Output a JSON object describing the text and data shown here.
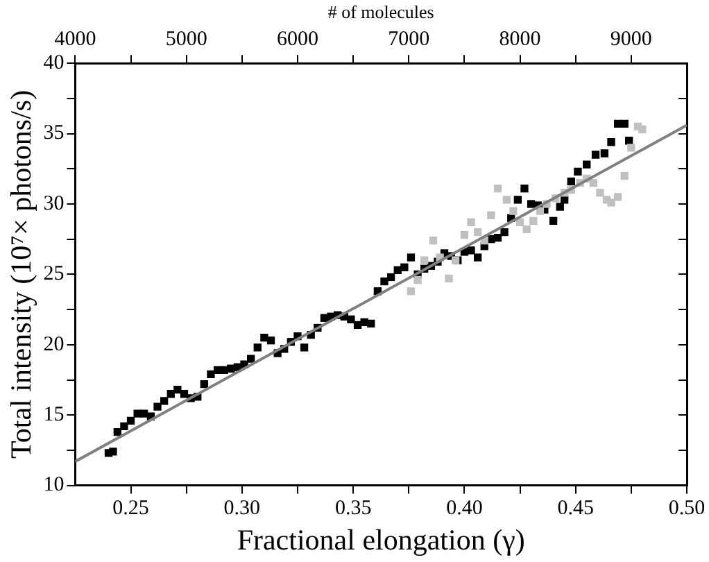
{
  "chart_data": {
    "type": "scatter",
    "xlabel": "Fractional elongation (γ)",
    "ylabel": "Total intensity (10⁷× photons/s)",
    "x2label": "# of molecules",
    "xlim": [
      0.225,
      0.5
    ],
    "xticks": [
      {
        "value": 0.25,
        "label": "0.25"
      },
      {
        "value": 0.275,
        "label": null
      },
      {
        "value": 0.3,
        "label": "0.30"
      },
      {
        "value": 0.325,
        "label": null
      },
      {
        "value": 0.35,
        "label": "0.35"
      },
      {
        "value": 0.375,
        "label": null
      },
      {
        "value": 0.4,
        "label": "0.40"
      },
      {
        "value": 0.425,
        "label": null
      },
      {
        "value": 0.45,
        "label": "0.45"
      },
      {
        "value": 0.475,
        "label": null
      },
      {
        "value": 0.5,
        "label": "0.50"
      }
    ],
    "x2lim": [
      4000,
      9500
    ],
    "x2ticks": [
      4000,
      {
        "value": 4500,
        "label": null
      },
      5000,
      {
        "value": 5500,
        "label": null
      },
      6000,
      {
        "value": 6500,
        "label": null
      },
      7000,
      {
        "value": 7500,
        "label": null
      },
      8000,
      {
        "value": 8500,
        "label": null
      },
      9000
    ],
    "ylim": [
      10,
      40
    ],
    "yticks": [
      10,
      {
        "value": 12.5,
        "label": null
      },
      15,
      {
        "value": 17.5,
        "label": null
      },
      20,
      {
        "value": 22.5,
        "label": null
      },
      25,
      {
        "value": 27.5,
        "label": null
      },
      30,
      {
        "value": 32.5,
        "label": null
      },
      35,
      {
        "value": 37.5,
        "label": null
      },
      40
    ],
    "grid": false,
    "legend": false,
    "marker": "square",
    "series": [
      {
        "color": "#000000",
        "x": [
          0.24,
          0.242,
          0.244,
          0.247,
          0.25,
          0.253,
          0.256,
          0.259,
          0.262,
          0.265,
          0.268,
          0.271,
          0.274,
          0.277,
          0.28,
          0.283,
          0.286,
          0.289,
          0.292,
          0.295,
          0.298,
          0.301,
          0.304,
          0.307,
          0.31,
          0.313,
          0.316,
          0.319,
          0.322,
          0.325,
          0.328,
          0.331,
          0.334,
          0.337,
          0.34,
          0.343,
          0.346,
          0.349,
          0.352,
          0.355,
          0.358,
          0.361,
          0.364,
          0.367,
          0.37,
          0.373,
          0.376,
          0.379,
          0.382,
          0.385,
          0.388,
          0.391,
          0.394,
          0.397,
          0.4,
          0.403,
          0.406,
          0.409,
          0.412,
          0.415,
          0.418,
          0.421,
          0.424,
          0.427,
          0.43,
          0.433,
          0.436,
          0.44,
          0.443,
          0.445,
          0.448,
          0.451,
          0.455,
          0.459,
          0.463,
          0.466,
          0.469,
          0.472,
          0.474
        ],
        "values": [
          12.3,
          12.4,
          13.8,
          14.2,
          14.6,
          15.1,
          15.1,
          14.9,
          15.6,
          16.0,
          16.5,
          16.8,
          16.5,
          16.2,
          16.3,
          17.2,
          17.9,
          18.2,
          18.2,
          18.3,
          18.4,
          18.6,
          19.0,
          19.8,
          20.5,
          20.3,
          19.4,
          19.7,
          20.2,
          20.6,
          19.8,
          20.7,
          21.2,
          21.9,
          22.0,
          22.1,
          22.0,
          21.8,
          21.4,
          21.6,
          21.5,
          23.8,
          24.5,
          24.8,
          25.3,
          25.5,
          26.2,
          25.0,
          25.4,
          25.6,
          25.9,
          26.5,
          26.3,
          26.0,
          26.6,
          26.7,
          26.2,
          27.0,
          27.5,
          27.6,
          28.0,
          29.0,
          30.3,
          31.1,
          30.0,
          29.9,
          29.6,
          28.8,
          29.8,
          30.3,
          31.6,
          32.3,
          32.8,
          33.5,
          33.6,
          34.4,
          35.7,
          35.7,
          34.5
        ]
      },
      {
        "color": "#c0c0c0",
        "x": [
          0.376,
          0.379,
          0.382,
          0.386,
          0.389,
          0.393,
          0.396,
          0.4,
          0.403,
          0.406,
          0.409,
          0.412,
          0.415,
          0.419,
          0.422,
          0.425,
          0.428,
          0.431,
          0.434,
          0.437,
          0.441,
          0.445,
          0.448,
          0.452,
          0.455,
          0.458,
          0.461,
          0.464,
          0.466,
          0.469,
          0.472,
          0.475,
          0.478,
          0.48
        ],
        "values": [
          23.8,
          24.6,
          26.0,
          27.4,
          26.2,
          24.7,
          26.0,
          27.8,
          28.7,
          28.0,
          27.4,
          29.2,
          31.1,
          30.3,
          29.5,
          28.7,
          28.2,
          28.8,
          29.5,
          30.0,
          30.4,
          30.8,
          31.0,
          31.5,
          31.8,
          31.5,
          30.8,
          30.3,
          30.1,
          30.5,
          32.0,
          34.0,
          35.5,
          35.3
        ]
      },
      {
        "type": "line",
        "color": "#808080",
        "marker": "none",
        "x": [
          0.225,
          0.5
        ],
        "values": [
          11.7,
          35.6
        ]
      }
    ]
  }
}
